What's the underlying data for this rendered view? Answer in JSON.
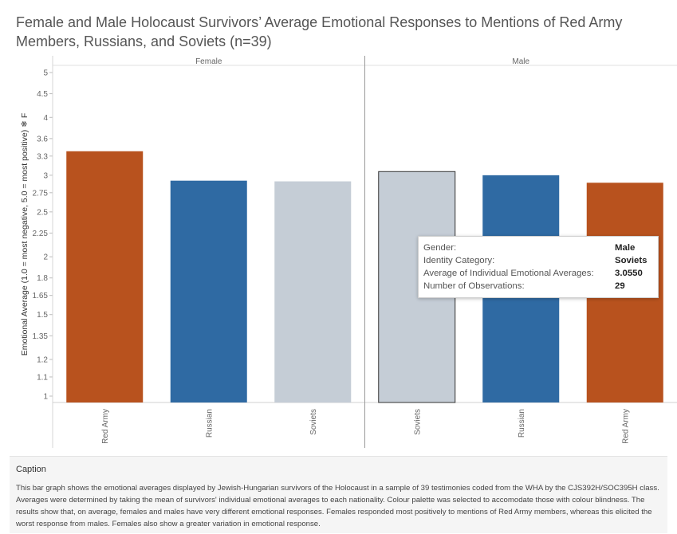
{
  "title": "Female and Male Holocaust Survivors’ Average Emotional Responses to Mentions of Red Army Members, Russians, and Soviets (n=39)",
  "chart_data": {
    "type": "bar",
    "ylabel": "Emotional Average (1.0 = most negative, 5.0 = most positive) ❄ F",
    "ylim": [
      1,
      5
    ],
    "y_scale": "log",
    "y_ticks": [
      1,
      1.1,
      1.2,
      1.35,
      1.5,
      1.65,
      1.8,
      2,
      2.25,
      2.5,
      2.75,
      3,
      3.3,
      3.6,
      4,
      4.5,
      5
    ],
    "y_tick_labels": [
      "1",
      "1.1",
      "1.2",
      "1.35",
      "1.5",
      "1.65",
      "1.8",
      "2",
      "2.25",
      "2.5",
      "2.75",
      "3",
      "3.3",
      "3.6",
      "4",
      "4.5",
      "5"
    ],
    "grid": false,
    "panels": [
      {
        "name": "Female",
        "categories": [
          "Red Army",
          "Russian",
          "Soviets"
        ],
        "values": [
          3.38,
          2.92,
          2.91
        ],
        "colors": [
          "#b8521e",
          "#2f6aa3",
          "#c5cdd6"
        ]
      },
      {
        "name": "Male",
        "categories": [
          "Soviets",
          "Russian",
          "Red Army"
        ],
        "values": [
          3.055,
          3.0,
          2.89
        ],
        "colors": [
          "#c5cdd6",
          "#2f6aa3",
          "#b8521e"
        ],
        "highlighted_index": 0
      }
    ]
  },
  "tooltip": {
    "rows": [
      {
        "label": "Gender:",
        "value": "Male"
      },
      {
        "label": "Identity Category:",
        "value": "Soviets"
      },
      {
        "label": "Average of Individual Emotional Averages:",
        "value": "3.0550"
      },
      {
        "label": "Number of Observations:",
        "value": "29"
      }
    ]
  },
  "caption": {
    "title": "Caption",
    "text": "This bar graph shows the emotional averages displayed by Jewish-Hungarian survivors of the Holocaust in a sample of 39 testimonies coded from the WHA by the CJS392H/SOC395H class. Averages were determined by taking the mean of survivors' individual emotional averages to each nationality. Colour palette was selected to accomodate those with colour blindness. The results show that, on average, females and males have very different emotional responses. Females responded most positively to mentions of Red Army members, whereas this elicited the worst response from males. Females also show a greater variation in emotional response."
  }
}
